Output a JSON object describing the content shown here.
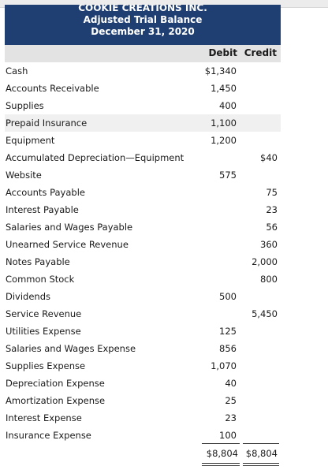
{
  "header": {
    "company": "COOKIE CREATIONS INC.",
    "statement": "Adjusted Trial Balance",
    "date": "December 31, 2020"
  },
  "columns": {
    "debit": "Debit",
    "credit": "Credit"
  },
  "accounts": [
    {
      "name": "Cash",
      "debit": "$1,340",
      "credit": ""
    },
    {
      "name": "Accounts Receivable",
      "debit": "1,450",
      "credit": ""
    },
    {
      "name": "Supplies",
      "debit": "400",
      "credit": ""
    },
    {
      "name": "Prepaid Insurance",
      "debit": "1,100",
      "credit": ""
    },
    {
      "name": "Equipment",
      "debit": "1,200",
      "credit": ""
    },
    {
      "name": "Accumulated Depreciation—Equipment",
      "debit": "",
      "credit": "$40"
    },
    {
      "name": "Website",
      "debit": "575",
      "credit": ""
    },
    {
      "name": "Accounts Payable",
      "debit": "",
      "credit": "75"
    },
    {
      "name": "Interest Payable",
      "debit": "",
      "credit": "23"
    },
    {
      "name": "Salaries and Wages Payable",
      "debit": "",
      "credit": "56"
    },
    {
      "name": "Unearned Service Revenue",
      "debit": "",
      "credit": "360"
    },
    {
      "name": "Notes Payable",
      "debit": "",
      "credit": "2,000"
    },
    {
      "name": "Common Stock",
      "debit": "",
      "credit": "800"
    },
    {
      "name": "Dividends",
      "debit": "500",
      "credit": ""
    },
    {
      "name": "Service Revenue",
      "debit": "",
      "credit": "5,450"
    },
    {
      "name": "Utilities Expense",
      "debit": "125",
      "credit": ""
    },
    {
      "name": "Salaries and Wages Expense",
      "debit": "856",
      "credit": ""
    },
    {
      "name": "Supplies Expense",
      "debit": "1,070",
      "credit": ""
    },
    {
      "name": "Depreciation Expense",
      "debit": "40",
      "credit": ""
    },
    {
      "name": "Amortization Expense",
      "debit": "25",
      "credit": ""
    },
    {
      "name": "Interest Expense",
      "debit": "23",
      "credit": ""
    },
    {
      "name": "Insurance Expense",
      "debit": "100",
      "credit": ""
    }
  ],
  "totals": {
    "debit": "$8,804",
    "credit": "$8,804"
  }
}
